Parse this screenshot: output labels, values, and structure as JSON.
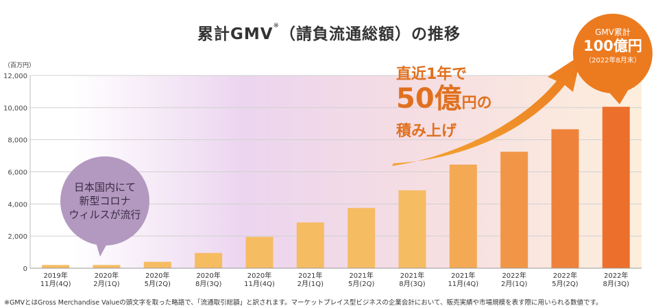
{
  "title": "累計GMV",
  "title_mark": "※",
  "title_suffix": "（請負流通総額）の推移",
  "unit_label": "（百万円）",
  "footnote": "※GMVとはGross Merchandise Valueの頭文字を取った略語で、「流通取引総額」と訳されます。マーケットプレイス型ビジネスの企業会計において、販売実績や市場規模を表す際に用いられる数値です。",
  "annotation": {
    "line1": "直近1年で",
    "line2_big": "50億",
    "line2_small": "円の",
    "line3": "積み上げ"
  },
  "milestone": {
    "label": "GMV累計",
    "value": "100億円",
    "date": "（2022年8月末）"
  },
  "covid_note": {
    "line1": "日本国内にて",
    "line2": "新型コロナ",
    "line3": "ウィルスが流行"
  },
  "colors": {
    "bar_light": "#f6bc62",
    "bar_dark": "#ec6f2c",
    "accent": "#ec7a1f",
    "bubble": "#b399bf"
  },
  "chart_data": {
    "type": "bar",
    "title": "累計GMV※（請負流通総額）の推移",
    "ylabel": "（百万円）",
    "ylim": [
      0,
      12000
    ],
    "yticks": [
      "0",
      "2,000",
      "4,000",
      "6,000",
      "8,000",
      "10,000",
      "12,000"
    ],
    "categories": [
      [
        "2019年",
        "11月(4Q)"
      ],
      [
        "2020年",
        "2月(1Q)"
      ],
      [
        "2020年",
        "5月(2Q)"
      ],
      [
        "2020年",
        "8月(3Q)"
      ],
      [
        "2020年",
        "11月(4Q)"
      ],
      [
        "2021年",
        "2月(1Q)"
      ],
      [
        "2021年",
        "5月(2Q)"
      ],
      [
        "2021年",
        "8月(3Q)"
      ],
      [
        "2021年",
        "11月(4Q)"
      ],
      [
        "2022年",
        "2月(1Q)"
      ],
      [
        "2022年",
        "5月(2Q)"
      ],
      [
        "2022年",
        "8月(3Q)"
      ]
    ],
    "values": [
      200,
      200,
      400,
      950,
      1950,
      2850,
      3750,
      4850,
      6450,
      7250,
      8650,
      10050
    ]
  }
}
